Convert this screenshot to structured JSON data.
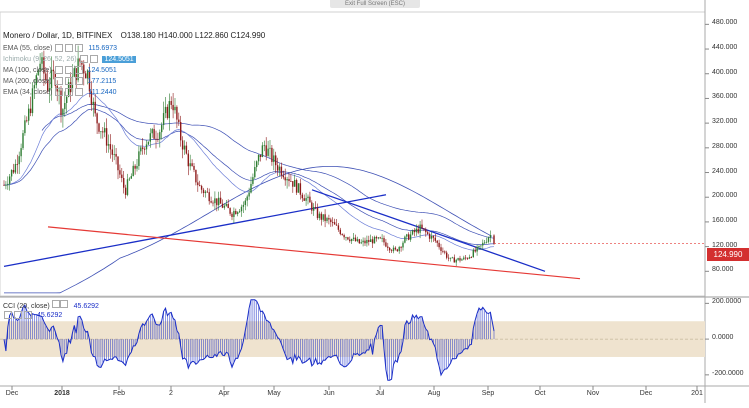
{
  "window": {
    "exit_full_screen": "Exit Full Screen (ESC)"
  },
  "header": {
    "symbol": "Monero / Dollar, 1D, BITFINEX",
    "open": "O138.180",
    "high": "H140.000",
    "low": "L122.860",
    "close": "C124.990"
  },
  "indicators": [
    {
      "name": "EMA (55, close)",
      "value": "115.6973",
      "color": "#1565c0"
    },
    {
      "name": "Ichimoku (9, 26, 52, 26)",
      "value": "124.5051",
      "color": "#90a4ae"
    },
    {
      "name": "MA (100, close)",
      "value": "124.5051",
      "color": "#1565c0"
    },
    {
      "name": "MA (200, close)",
      "value": "177.2115",
      "color": "#1565c0"
    },
    {
      "name": "EMA (34, close)",
      "value": "111.2440",
      "color": "#1565c0"
    }
  ],
  "oscillator": {
    "name": "CCI (20, close)",
    "value1": "45.6292",
    "value2": "45.6292"
  },
  "price_tag": "124.990",
  "colors": {
    "up": "#2e7d32",
    "down": "#8e1a1a",
    "trend_blue": "#1a2ec7",
    "trend_red": "#e53935",
    "ma_blue": "#3f51b5",
    "band": "#efe3cf"
  },
  "chart_data": {
    "type": "candlestick",
    "title": "Monero / Dollar, 1D, BITFINEX",
    "x_ticks": [
      "Dec",
      "2018",
      "Feb",
      "2",
      "Apr",
      "May",
      "Jun",
      "Jul",
      "Aug",
      "Sep",
      "Oct",
      "Nov",
      "Dec",
      "201"
    ],
    "y_ticks": [
      "480.000",
      "440.000",
      "400.000",
      "360.000",
      "320.000",
      "280.000",
      "240.000",
      "200.000",
      "160.000",
      "120.000",
      "80.000"
    ],
    "ylim": [
      40,
      500
    ],
    "last_ohlc": {
      "open": 138.18,
      "high": 140.0,
      "low": 122.86,
      "close": 124.99
    },
    "ma_200": 177.2115,
    "ema_55": 115.6973,
    "ema_34": 111.244,
    "ma_100": 124.5051,
    "oscillator_y_ticks": [
      "200.0000",
      "0.0000",
      "-200.0000"
    ],
    "oscillator_ylim": [
      -240,
      230
    ],
    "oscillator_band": [
      -100,
      100
    ],
    "oscillator_last": 45.6292,
    "trendlines": [
      {
        "name": "ascending",
        "from": [
          "Dec",
          88
        ],
        "to": [
          "Jul",
          204
        ]
      },
      {
        "name": "descending",
        "from": [
          "Jun",
          212
        ],
        "to": [
          "Oct",
          80
        ]
      },
      {
        "name": "support",
        "from": [
          "Dec",
          152
        ],
        "to": [
          "Oct",
          68
        ]
      }
    ]
  }
}
